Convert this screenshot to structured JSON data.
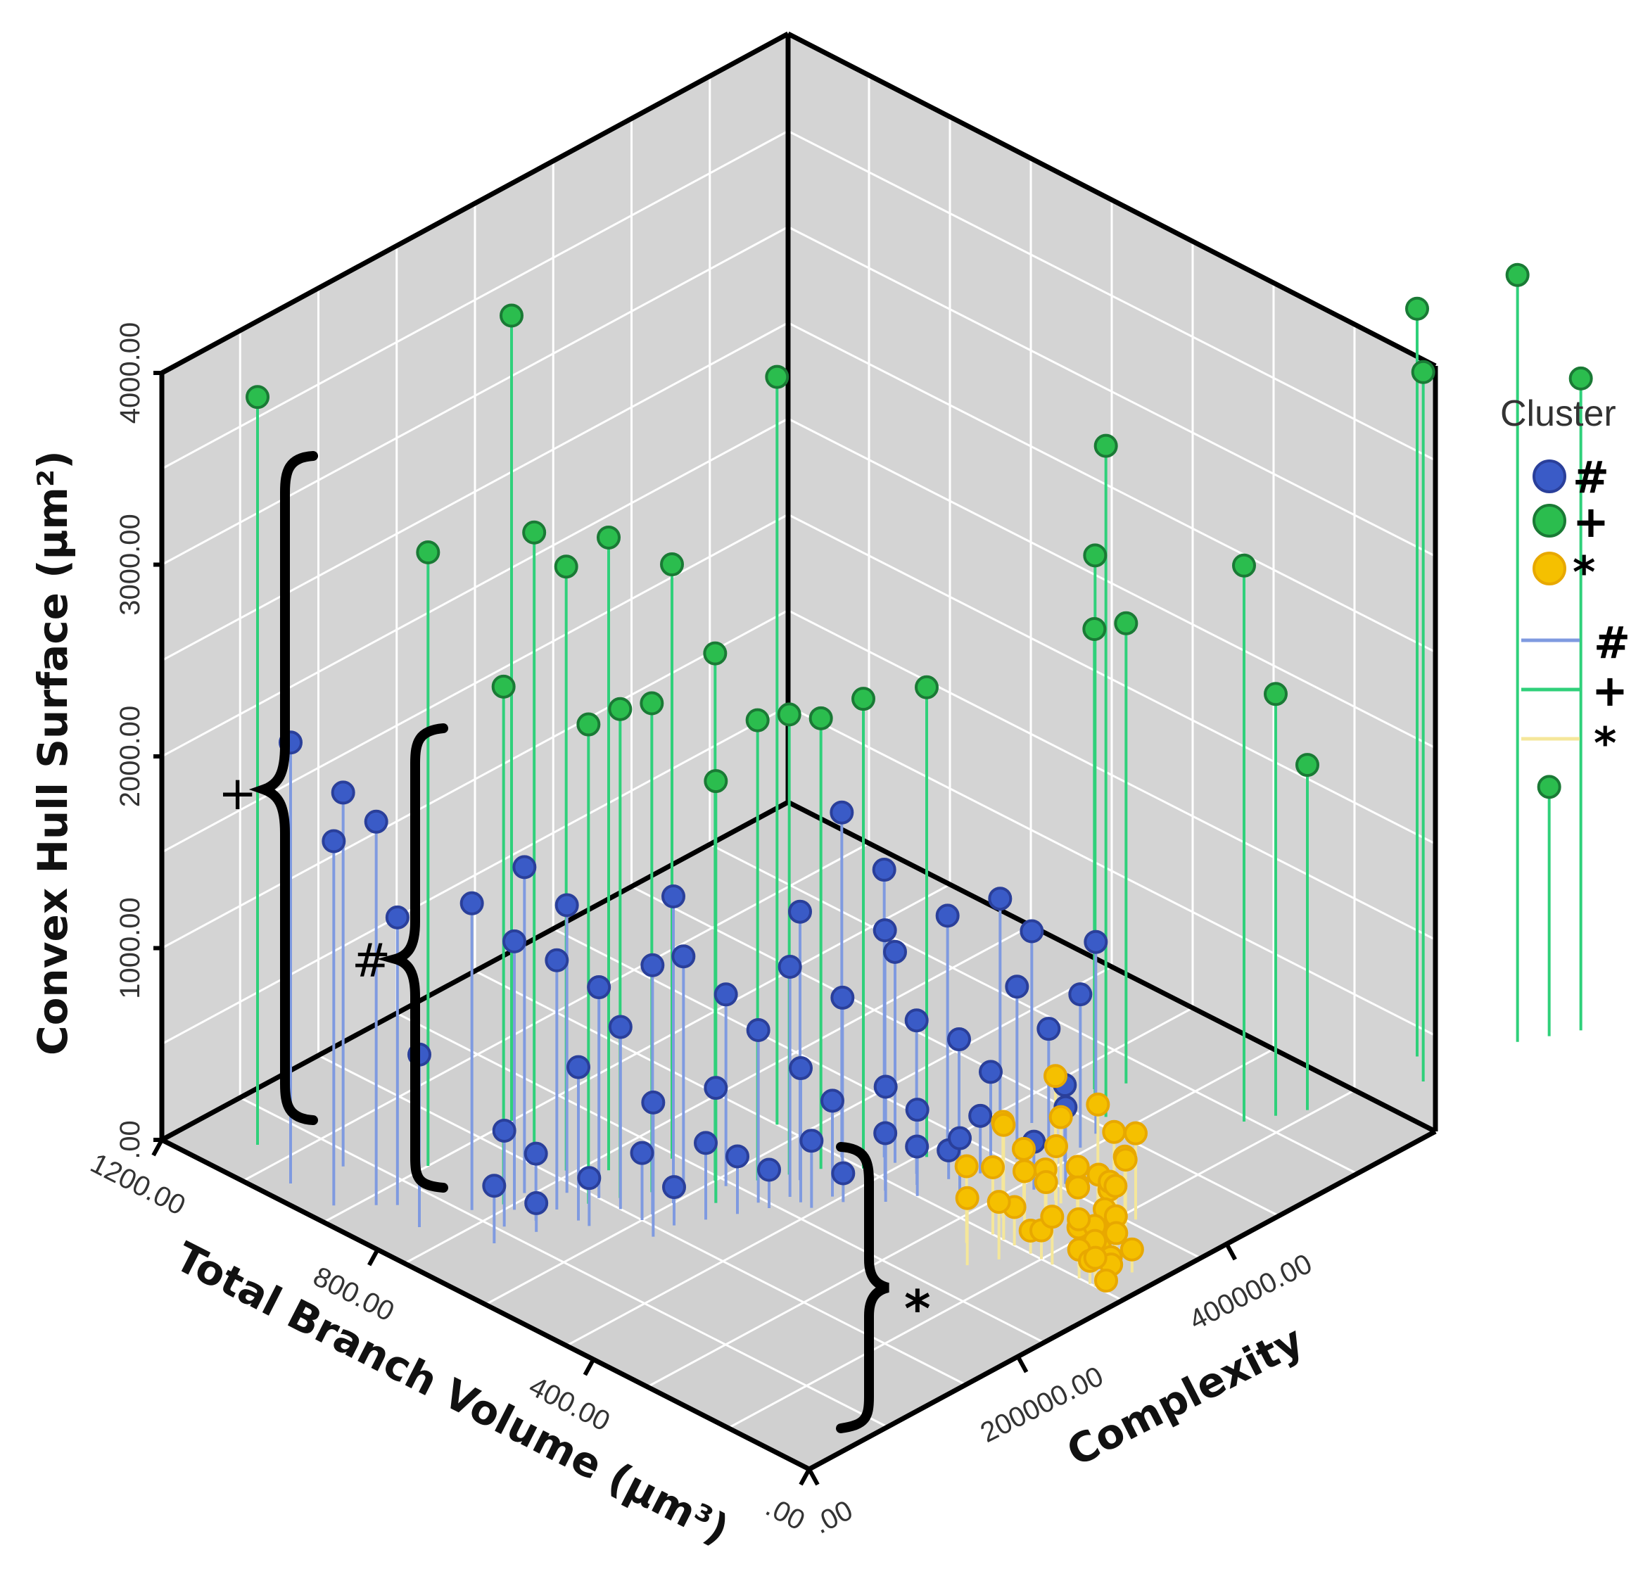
{
  "chart_data": {
    "type": "scatter3d",
    "title": "",
    "x_axis": {
      "label": "Total Branch Volume (µm³)",
      "ticks": [
        ".00",
        "400.00",
        "800.00",
        "1200.00"
      ],
      "range": [
        0,
        1200
      ]
    },
    "y_axis": {
      "label": "Complexity",
      "ticks": [
        ".00",
        "200000.00",
        "400000.00"
      ],
      "range": [
        0,
        600000
      ]
    },
    "z_axis": {
      "label": "Convex Hull Surface (µm²)",
      "ticks": [
        ".00",
        "1000.00",
        "2000.00",
        "3000.00",
        "4000.00"
      ],
      "range": [
        0,
        4000
      ]
    },
    "legend": {
      "title": "Cluster",
      "position": "right",
      "markers": [
        {
          "symbol": "#",
          "color": "#3a5bc7"
        },
        {
          "symbol": "+",
          "color": "#2bbd4e"
        },
        {
          "symbol": "*",
          "color": "#f5c000"
        }
      ],
      "lines": [
        {
          "symbol": "#",
          "color": "#7f9ae0"
        },
        {
          "symbol": "+",
          "color": "#2fd07a"
        },
        {
          "symbol": "*",
          "color": "#f5e79a"
        }
      ]
    },
    "annotations": [
      {
        "label": "+",
        "cluster": "+",
        "z_range": [
          0,
          4000
        ]
      },
      {
        "label": "#",
        "cluster": "#",
        "z_range": [
          0,
          2500
        ]
      },
      {
        "label": "*",
        "cluster": "*",
        "z_range": [
          0,
          800
        ]
      }
    ],
    "series": [
      {
        "name": "#",
        "color": "#3a5bc7",
        "line_color": "#7f9ae0",
        "points": [
          [
            1000,
            20000,
            2300
          ],
          [
            920,
            20000,
            1900
          ],
          [
            880,
            40000,
            2000
          ],
          [
            980,
            60000,
            1950
          ],
          [
            860,
            50000,
            1500
          ],
          [
            780,
            80000,
            1600
          ],
          [
            800,
            40000,
            900
          ],
          [
            740,
            100000,
            1400
          ],
          [
            760,
            120000,
            1700
          ],
          [
            700,
            120000,
            1300
          ],
          [
            720,
            140000,
            1500
          ],
          [
            680,
            150000,
            1100
          ],
          [
            660,
            120000,
            800
          ],
          [
            640,
            150000,
            950
          ],
          [
            600,
            160000,
            1300
          ],
          [
            600,
            180000,
            1600
          ],
          [
            620,
            200000,
            1200
          ],
          [
            580,
            220000,
            1000
          ],
          [
            560,
            140000,
            700
          ],
          [
            540,
            180000,
            400
          ],
          [
            560,
            200000,
            600
          ],
          [
            520,
            220000,
            900
          ],
          [
            500,
            240000,
            1200
          ],
          [
            520,
            260000,
            1400
          ],
          [
            480,
            240000,
            700
          ],
          [
            460,
            260000,
            500
          ],
          [
            480,
            280000,
            950
          ],
          [
            440,
            300000,
            1300
          ],
          [
            460,
            320000,
            1100
          ],
          [
            420,
            320000,
            800
          ],
          [
            400,
            280000,
            600
          ],
          [
            380,
            300000,
            450
          ],
          [
            380,
            340000,
            700
          ],
          [
            360,
            360000,
            500
          ],
          [
            340,
            320000,
            300
          ],
          [
            350,
            380000,
            900
          ],
          [
            330,
            400000,
            650
          ],
          [
            310,
            420000,
            800
          ],
          [
            300,
            400000,
            400
          ],
          [
            320,
            440000,
            1000
          ],
          [
            280,
            360000,
            250
          ],
          [
            260,
            380000,
            400
          ],
          [
            700,
            100000,
            350
          ],
          [
            720,
            80000,
            500
          ],
          [
            640,
            120000,
            250
          ],
          [
            600,
            150000,
            350
          ],
          [
            560,
            160000,
            200
          ],
          [
            520,
            200000,
            300
          ],
          [
            500,
            220000,
            200
          ],
          [
            460,
            240000,
            350
          ],
          [
            440,
            260000,
            150
          ],
          [
            420,
            290000,
            300
          ],
          [
            400,
            310000,
            200
          ],
          [
            380,
            330000,
            150
          ],
          [
            360,
            350000,
            300
          ],
          [
            520,
            300000,
            1800
          ],
          [
            480,
            320000,
            1500
          ],
          [
            440,
            360000,
            1200
          ],
          [
            420,
            400000,
            1200
          ],
          [
            400,
            420000,
            1000
          ],
          [
            700,
            60000,
            300
          ],
          [
            680,
            90000,
            150
          ]
        ]
      },
      {
        "name": "+",
        "color": "#2bbd4e",
        "line_color": "#2fd07a",
        "points": [
          [
            1100,
            40000,
            3900
          ],
          [
            900,
            100000,
            3200
          ],
          [
            800,
            150000,
            3300
          ],
          [
            760,
            160000,
            3150
          ],
          [
            720,
            180000,
            3300
          ],
          [
            680,
            220000,
            3100
          ],
          [
            760,
            100000,
            2700
          ],
          [
            680,
            140000,
            2500
          ],
          [
            660,
            160000,
            2550
          ],
          [
            640,
            180000,
            2550
          ],
          [
            600,
            220000,
            2750
          ],
          [
            560,
            240000,
            2400
          ],
          [
            540,
            260000,
            2400
          ],
          [
            560,
            200000,
            2200
          ],
          [
            520,
            280000,
            2350
          ],
          [
            480,
            300000,
            2450
          ],
          [
            440,
            340000,
            2450
          ],
          [
            640,
            300000,
            3900
          ],
          [
            900,
            180000,
            4200
          ],
          [
            340,
            460000,
            3500
          ],
          [
            360,
            460000,
            2900
          ],
          [
            400,
            480000,
            2400
          ],
          [
            380,
            500000,
            2400
          ],
          [
            200,
            520000,
            2900
          ],
          [
            180,
            540000,
            2200
          ],
          [
            160,
            560000,
            1800
          ],
          [
            150,
            660000,
            3900
          ],
          [
            100,
            640000,
            3700
          ],
          [
            80,
            720000,
            4000
          ],
          [
            40,
            760000,
            3400
          ],
          [
            60,
            740000,
            1300
          ]
        ]
      },
      {
        "name": "*",
        "color": "#f5c000",
        "line_color": "#f5e79a",
        "points": [
          [
            240,
            300000,
            350
          ],
          [
            220,
            320000,
            300
          ],
          [
            200,
            340000,
            400
          ],
          [
            220,
            340000,
            250
          ],
          [
            200,
            300000,
            200
          ],
          [
            180,
            320000,
            300
          ],
          [
            180,
            350000,
            200
          ],
          [
            160,
            340000,
            350
          ],
          [
            160,
            360000,
            250
          ],
          [
            150,
            300000,
            150
          ],
          [
            140,
            330000,
            300
          ],
          [
            140,
            360000,
            200
          ],
          [
            130,
            300000,
            250
          ],
          [
            120,
            320000,
            150
          ],
          [
            120,
            350000,
            300
          ],
          [
            110,
            340000,
            200
          ],
          [
            100,
            310000,
            250
          ],
          [
            100,
            330000,
            120
          ],
          [
            90,
            320000,
            200
          ],
          [
            80,
            300000,
            150
          ],
          [
            80,
            320000,
            100
          ],
          [
            70,
            310000,
            180
          ],
          [
            60,
            300000,
            120
          ],
          [
            60,
            320000,
            80
          ],
          [
            50,
            300000,
            150
          ],
          [
            40,
            310000,
            100
          ],
          [
            30,
            300000,
            60
          ],
          [
            260,
            320000,
            500
          ],
          [
            250,
            280000,
            400
          ],
          [
            230,
            360000,
            450
          ],
          [
            200,
            380000,
            500
          ],
          [
            170,
            380000,
            400
          ],
          [
            190,
            280000,
            300
          ],
          [
            210,
            260000,
            350
          ],
          [
            260,
            340000,
            300
          ],
          [
            150,
            380000,
            300
          ],
          [
            130,
            380000,
            450
          ],
          [
            110,
            360000,
            400
          ],
          [
            170,
            300000,
            120
          ],
          [
            90,
            340000,
            350
          ],
          [
            70,
            330000,
            250
          ],
          [
            50,
            320000,
            220
          ],
          [
            40,
            330000,
            120
          ],
          [
            240,
            360000,
            650
          ],
          [
            220,
            300000,
            600
          ]
        ]
      }
    ]
  }
}
